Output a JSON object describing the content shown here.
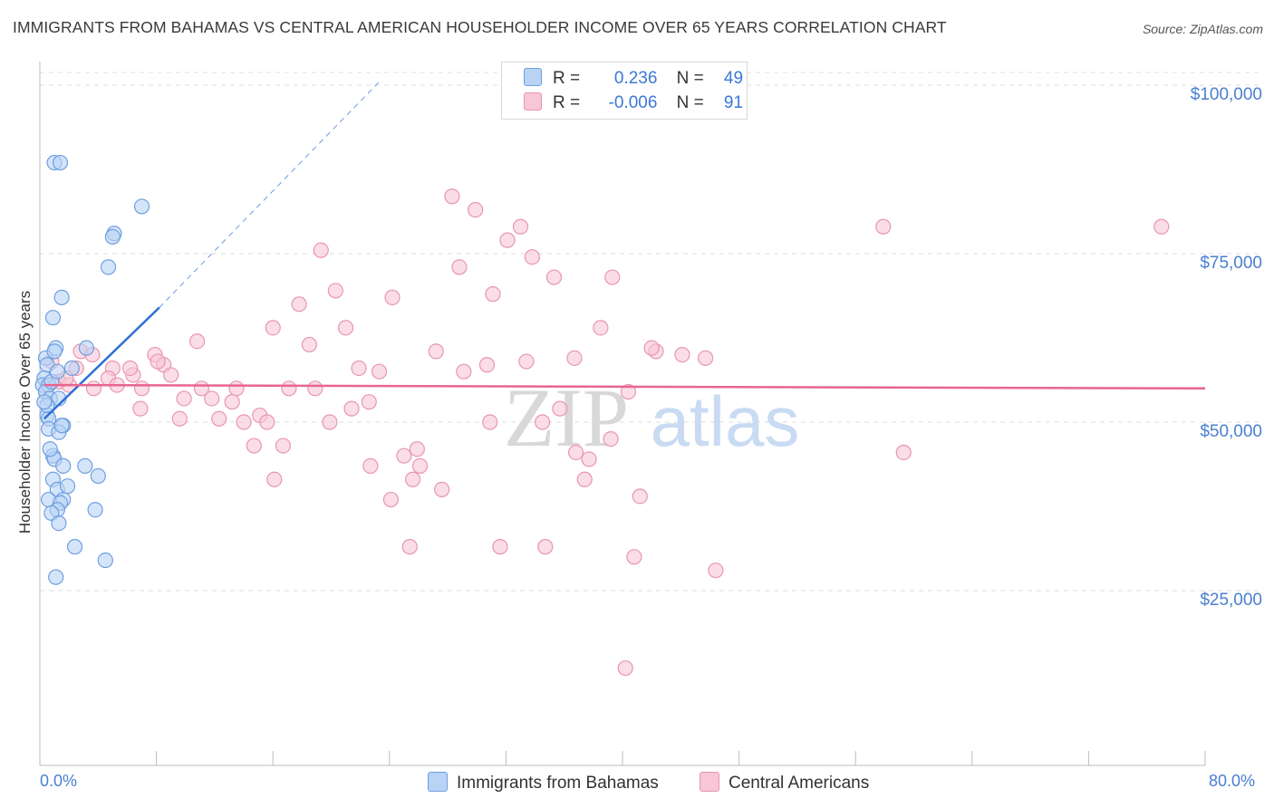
{
  "header": {
    "title": "IMMIGRANTS FROM BAHAMAS VS CENTRAL AMERICAN HOUSEHOLDER INCOME OVER 65 YEARS CORRELATION CHART",
    "source": "Source: ZipAtlas.com"
  },
  "legend": {
    "r_label": "R =",
    "n_label": "N =",
    "rows": [
      {
        "r": "0.236",
        "n": "49"
      },
      {
        "r": "-0.006",
        "n": "91"
      }
    ]
  },
  "watermark": {
    "zip": "ZIP",
    "atlas": "atlas"
  },
  "colors": {
    "blue_fill": "#b9d3f5",
    "blue_stroke": "#6f9fe0",
    "blue_line": "#2f6fd6",
    "pink_fill": "#f8c6d6",
    "pink_stroke": "#e896b0",
    "pink_line": "#e8658f",
    "axis_text": "#4a7fd0",
    "grid": "#dcdcdc"
  },
  "chart_data": {
    "type": "scatter",
    "title": "IMMIGRANTS FROM BAHAMAS VS CENTRAL AMERICAN HOUSEHOLDER INCOME OVER 65 YEARS CORRELATION CHART",
    "xlabel": "",
    "ylabel": "Householder Income Over 65 years",
    "xlim": [
      0,
      80
    ],
    "ylim": [
      0,
      105000
    ],
    "x_tick_labels": [
      "0.0%",
      "80.0%"
    ],
    "y_ticks": [
      25000,
      50000,
      75000,
      100000
    ],
    "y_tick_labels": [
      "$25,000",
      "$50,000",
      "$75,000",
      "$100,000"
    ],
    "grid": true,
    "legend_position": "top-center",
    "series": [
      {
        "name": "Immigrants from Bahamas",
        "color": "#6f9fe0",
        "r": 0.236,
        "n": 49,
        "trend": {
          "x0": 0.3,
          "y0": 50500,
          "x1": 8.2,
          "y1": 67000,
          "dashed_to_x": 23.3,
          "dashed_to_y": 100500
        },
        "points": [
          [
            1.0,
            88500
          ],
          [
            1.4,
            88500
          ],
          [
            7.0,
            82000
          ],
          [
            5.1,
            78000
          ],
          [
            5.0,
            77500
          ],
          [
            4.7,
            73000
          ],
          [
            1.5,
            68500
          ],
          [
            0.9,
            65500
          ],
          [
            1.1,
            61000
          ],
          [
            3.2,
            61000
          ],
          [
            0.4,
            59500
          ],
          [
            1.0,
            60500
          ],
          [
            0.5,
            58500
          ],
          [
            0.3,
            56500
          ],
          [
            0.2,
            55500
          ],
          [
            0.6,
            55500
          ],
          [
            0.4,
            54500
          ],
          [
            0.7,
            53500
          ],
          [
            1.3,
            53500
          ],
          [
            0.5,
            51000
          ],
          [
            0.6,
            50500
          ],
          [
            1.6,
            49500
          ],
          [
            0.6,
            49000
          ],
          [
            1.3,
            48500
          ],
          [
            0.9,
            45000
          ],
          [
            1.0,
            44500
          ],
          [
            1.6,
            43500
          ],
          [
            3.1,
            43500
          ],
          [
            4.0,
            42000
          ],
          [
            0.9,
            41500
          ],
          [
            1.2,
            40000
          ],
          [
            0.6,
            38500
          ],
          [
            1.6,
            38500
          ],
          [
            1.4,
            38000
          ],
          [
            1.2,
            37000
          ],
          [
            3.8,
            37000
          ],
          [
            0.8,
            36500
          ],
          [
            1.3,
            35000
          ],
          [
            2.4,
            31500
          ],
          [
            4.5,
            29500
          ],
          [
            1.1,
            27000
          ],
          [
            0.5,
            52500
          ],
          [
            0.8,
            56000
          ],
          [
            1.2,
            57500
          ],
          [
            0.3,
            53000
          ],
          [
            2.2,
            58000
          ],
          [
            0.7,
            46000
          ],
          [
            1.5,
            49500
          ],
          [
            1.9,
            40500
          ]
        ]
      },
      {
        "name": "Central Americans",
        "color": "#e896b0",
        "r": -0.006,
        "n": 91,
        "trend": {
          "x0": 0.3,
          "y0": 55500,
          "x1": 80.0,
          "y1": 55000
        },
        "points": [
          [
            28.3,
            83500
          ],
          [
            29.9,
            81500
          ],
          [
            33.0,
            79000
          ],
          [
            32.1,
            77000
          ],
          [
            33.8,
            74500
          ],
          [
            57.9,
            79000
          ],
          [
            77.0,
            79000
          ],
          [
            19.3,
            75500
          ],
          [
            28.8,
            73000
          ],
          [
            35.3,
            71500
          ],
          [
            39.3,
            71500
          ],
          [
            31.1,
            69000
          ],
          [
            20.3,
            69500
          ],
          [
            24.2,
            68500
          ],
          [
            17.8,
            67500
          ],
          [
            38.5,
            64000
          ],
          [
            16.0,
            64000
          ],
          [
            21.0,
            64000
          ],
          [
            10.8,
            62000
          ],
          [
            18.5,
            61500
          ],
          [
            27.2,
            60500
          ],
          [
            42.3,
            60500
          ],
          [
            36.7,
            59500
          ],
          [
            45.7,
            59500
          ],
          [
            33.4,
            59000
          ],
          [
            30.7,
            58500
          ],
          [
            21.9,
            58000
          ],
          [
            23.3,
            57500
          ],
          [
            29.1,
            57500
          ],
          [
            7.9,
            60000
          ],
          [
            8.5,
            58500
          ],
          [
            5.0,
            58000
          ],
          [
            6.4,
            57000
          ],
          [
            9.0,
            57000
          ],
          [
            4.7,
            56500
          ],
          [
            1.3,
            56000
          ],
          [
            2.0,
            55500
          ],
          [
            3.7,
            55000
          ],
          [
            5.3,
            55500
          ],
          [
            7.0,
            55000
          ],
          [
            11.1,
            55000
          ],
          [
            13.5,
            55000
          ],
          [
            17.1,
            55000
          ],
          [
            18.9,
            55000
          ],
          [
            40.4,
            54500
          ],
          [
            9.9,
            53500
          ],
          [
            11.8,
            53500
          ],
          [
            13.2,
            53000
          ],
          [
            22.6,
            53000
          ],
          [
            6.9,
            52000
          ],
          [
            21.4,
            52000
          ],
          [
            35.7,
            52000
          ],
          [
            9.6,
            50500
          ],
          [
            12.3,
            50500
          ],
          [
            14.0,
            50000
          ],
          [
            15.1,
            51000
          ],
          [
            15.6,
            50000
          ],
          [
            19.9,
            50000
          ],
          [
            30.9,
            50000
          ],
          [
            34.5,
            50000
          ],
          [
            39.2,
            47500
          ],
          [
            14.7,
            46500
          ],
          [
            16.7,
            46500
          ],
          [
            25.9,
            46000
          ],
          [
            36.8,
            45500
          ],
          [
            25.0,
            45000
          ],
          [
            37.7,
            44500
          ],
          [
            59.3,
            45500
          ],
          [
            22.7,
            43500
          ],
          [
            26.1,
            43500
          ],
          [
            16.1,
            41500
          ],
          [
            25.6,
            41500
          ],
          [
            37.4,
            41500
          ],
          [
            27.6,
            40000
          ],
          [
            41.2,
            39000
          ],
          [
            24.1,
            38500
          ],
          [
            25.4,
            31500
          ],
          [
            31.6,
            31500
          ],
          [
            34.7,
            31500
          ],
          [
            40.8,
            30000
          ],
          [
            46.4,
            28000
          ],
          [
            40.2,
            13500
          ],
          [
            0.8,
            59000
          ],
          [
            2.8,
            60500
          ],
          [
            6.2,
            58000
          ],
          [
            42.0,
            61000
          ],
          [
            44.1,
            60000
          ],
          [
            8.1,
            59000
          ],
          [
            3.6,
            60000
          ],
          [
            2.5,
            58000
          ],
          [
            1.8,
            56500
          ]
        ]
      }
    ]
  }
}
